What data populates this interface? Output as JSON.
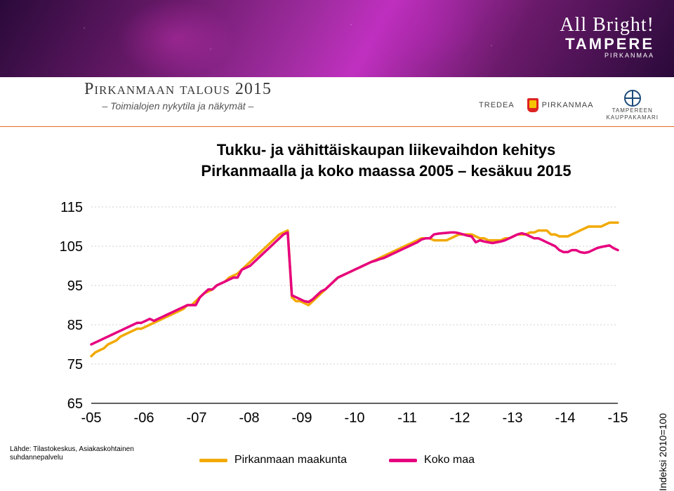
{
  "banner": {
    "script": "All Bright!",
    "brand": "TAMPERE",
    "brand_sub": "PIRKANMAA"
  },
  "header": {
    "title": "Pirkanmaan talous 2015",
    "subtitle": "– Toimialojen nykytila ja näkymät –",
    "partners": {
      "p1": "TREDEA",
      "p2": "PIRKANMAA",
      "p3a": "TAMPEREEN",
      "p3b": "KAUPPAKAMARI"
    }
  },
  "chart": {
    "title_line1": "Tukku- ja vähittäiskaupan liikevaihdon kehitys",
    "title_line2": "Pirkanmaalla ja koko maassa 2005 – kesäkuu 2015",
    "ylabel": "Indeksi 2010=100",
    "ylim": [
      65,
      115
    ],
    "ytick_step": 10,
    "yticks": [
      "65",
      "75",
      "85",
      "95",
      "105",
      "115"
    ],
    "xlabels": [
      "-05",
      "-06",
      "-07",
      "-08",
      "-09",
      "-10",
      "-11",
      "-12",
      "-13",
      "-14",
      "-15"
    ],
    "x_count": 127,
    "background_color": "#ffffff",
    "grid_color": "#9aa0a6",
    "grid_dash": "2 3",
    "axis_fontsize": 20,
    "line_width": 3.5,
    "series": {
      "pirkanmaa": {
        "label": "Pirkanmaan maakunta",
        "color": "#f2a900",
        "values": [
          77,
          78,
          78.5,
          79,
          80,
          80.5,
          81,
          82,
          82.5,
          83,
          83.5,
          84,
          84,
          84.5,
          85,
          85.5,
          86,
          86.5,
          87,
          87.5,
          88,
          88.5,
          89,
          90,
          90,
          91,
          92,
          93,
          93.5,
          94,
          95,
          95.5,
          96,
          97,
          97.5,
          98,
          99,
          100,
          101,
          102,
          103,
          104,
          105,
          106,
          107,
          108,
          108.5,
          109,
          92,
          91,
          91,
          90.5,
          90,
          91,
          92,
          93,
          94,
          95,
          96,
          97,
          97.5,
          98,
          98.5,
          99,
          99.5,
          100,
          100.5,
          101,
          101.5,
          102,
          102.5,
          103,
          103.5,
          104,
          104.5,
          105,
          105.5,
          106,
          106.5,
          107,
          107,
          107,
          106.5,
          106.5,
          106.5,
          106.5,
          107,
          107.5,
          108,
          108,
          108,
          108,
          107.5,
          107,
          107,
          106.5,
          106.5,
          106.5,
          106.5,
          107,
          107,
          107.5,
          108,
          108,
          108,
          108.5,
          108.5,
          109,
          109,
          109,
          108,
          108,
          107.5,
          107.5,
          107.5,
          108,
          108.5,
          109,
          109.5,
          110,
          110,
          110,
          110,
          110.5,
          111,
          111,
          111
        ]
      },
      "koko_maa": {
        "label": "Koko maa",
        "color": "#e6007e",
        "values": [
          80,
          80.5,
          81,
          81.5,
          82,
          82.5,
          83,
          83.5,
          84,
          84.5,
          85,
          85.5,
          85.5,
          86,
          86.5,
          86,
          86.5,
          87,
          87.5,
          88,
          88.5,
          89,
          89.5,
          90,
          90,
          90,
          92,
          93,
          94,
          94,
          95,
          95.5,
          96,
          96.5,
          97,
          97,
          99,
          99.5,
          100,
          101,
          102,
          103,
          104,
          105,
          106,
          107,
          108,
          108.5,
          92.5,
          92,
          91.5,
          91,
          90.8,
          91.5,
          92.5,
          93.5,
          94,
          95,
          96,
          97,
          97.5,
          98,
          98.5,
          99,
          99.5,
          100,
          100.5,
          101,
          101.3,
          101.7,
          102,
          102.5,
          103,
          103.5,
          104,
          104.5,
          105,
          105.5,
          106,
          106.7,
          107,
          107,
          108,
          108.2,
          108.3,
          108.4,
          108.5,
          108.5,
          108.3,
          108,
          107.7,
          107.5,
          106,
          106.5,
          106.2,
          106,
          105.8,
          106,
          106.2,
          106.5,
          107,
          107.5,
          108,
          108.3,
          108,
          107.5,
          107,
          107,
          106.5,
          106,
          105.5,
          105,
          104,
          103.5,
          103.5,
          104,
          104,
          103.5,
          103.3,
          103.5,
          104,
          104.5,
          104.8,
          105,
          105.2,
          104.5,
          104
        ]
      }
    }
  },
  "legend": {
    "s1": "Pirkanmaan maakunta",
    "s2": "Koko maa"
  },
  "source": {
    "line1": "Lähde: Tilastokeskus, Asiakaskohtainen",
    "line2": "suhdannepalvelu"
  }
}
